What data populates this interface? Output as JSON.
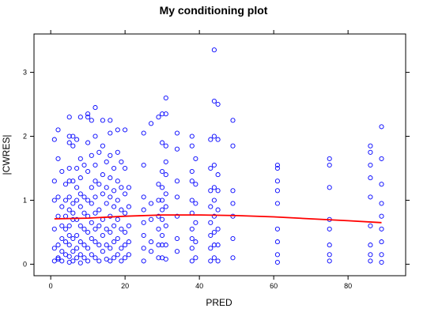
{
  "chart_data": {
    "type": "scatter",
    "title": "My conditioning plot",
    "xlabel": "PRED",
    "ylabel": "|CWRES|",
    "xlim": [
      -4.5,
      95.5
    ],
    "ylim": [
      -0.18,
      3.6
    ],
    "xticks": [
      0,
      20,
      40,
      60,
      80
    ],
    "yticks": [
      0,
      1,
      2,
      3
    ],
    "grid": false,
    "point_color": "#0000ff",
    "smooth_color": "#ff0000",
    "series": [
      {
        "values": [
          [
            1,
            1.95
          ],
          [
            1,
            1.3
          ],
          [
            1,
            1.0
          ],
          [
            1,
            0.55
          ],
          [
            1,
            0.25
          ],
          [
            1,
            0.05
          ],
          [
            2,
            2.1
          ],
          [
            2,
            1.65
          ],
          [
            2,
            1.05
          ],
          [
            2,
            0.75
          ],
          [
            2,
            0.3
          ],
          [
            2,
            0.1
          ],
          [
            2,
            0.08
          ],
          [
            3,
            1.45
          ],
          [
            3,
            0.9
          ],
          [
            3,
            0.6
          ],
          [
            3,
            0.4
          ],
          [
            3,
            0.2
          ],
          [
            3,
            0.05
          ],
          [
            4,
            1.25
          ],
          [
            4,
            1.0
          ],
          [
            4,
            0.75
          ],
          [
            4,
            0.55
          ],
          [
            4,
            0.35
          ],
          [
            4,
            0.15
          ],
          [
            5,
            2.3
          ],
          [
            5,
            2.0
          ],
          [
            5,
            1.9
          ],
          [
            5,
            1.5
          ],
          [
            5,
            1.3
          ],
          [
            5,
            1.05
          ],
          [
            5,
            0.85
          ],
          [
            5,
            0.6
          ],
          [
            5,
            0.45
          ],
          [
            5,
            0.3
          ],
          [
            5,
            0.12
          ],
          [
            5,
            0.03
          ],
          [
            6,
            2.0
          ],
          [
            6,
            1.85
          ],
          [
            6,
            1.3
          ],
          [
            6,
            0.95
          ],
          [
            6,
            0.8
          ],
          [
            6,
            0.7
          ],
          [
            6,
            0.4
          ],
          [
            6,
            0.2
          ],
          [
            6,
            0.05
          ],
          [
            7,
            1.95
          ],
          [
            7,
            1.5
          ],
          [
            7,
            1.2
          ],
          [
            7,
            1.0
          ],
          [
            7,
            0.7
          ],
          [
            7,
            0.45
          ],
          [
            7,
            0.25
          ],
          [
            7,
            0.1
          ],
          [
            8,
            2.3
          ],
          [
            8,
            1.65
          ],
          [
            8,
            1.35
          ],
          [
            8,
            1.1
          ],
          [
            8,
            0.9
          ],
          [
            8,
            0.6
          ],
          [
            8,
            0.35
          ],
          [
            8,
            0.15
          ],
          [
            8,
            0.02
          ],
          [
            9,
            1.55
          ],
          [
            9,
            1.05
          ],
          [
            9,
            0.8
          ],
          [
            9,
            0.55
          ],
          [
            9,
            0.3
          ],
          [
            9,
            0.1
          ],
          [
            10,
            2.35
          ],
          [
            10,
            2.3
          ],
          [
            10,
            1.9
          ],
          [
            10,
            1.45
          ],
          [
            10,
            1.0
          ],
          [
            10,
            0.75
          ],
          [
            10,
            0.5
          ],
          [
            10,
            0.25
          ],
          [
            10,
            0.05
          ],
          [
            11,
            2.25
          ],
          [
            11,
            1.7
          ],
          [
            11,
            1.2
          ],
          [
            11,
            0.95
          ],
          [
            11,
            0.65
          ],
          [
            11,
            0.4
          ],
          [
            11,
            0.15
          ],
          [
            12,
            2.45
          ],
          [
            12,
            2.0
          ],
          [
            12,
            1.55
          ],
          [
            12,
            1.3
          ],
          [
            12,
            1.05
          ],
          [
            12,
            0.8
          ],
          [
            12,
            0.55
          ],
          [
            12,
            0.35
          ],
          [
            12,
            0.1
          ],
          [
            13,
            1.75
          ],
          [
            13,
            1.25
          ],
          [
            13,
            0.85
          ],
          [
            13,
            0.6
          ],
          [
            13,
            0.3
          ],
          [
            13,
            0.05
          ],
          [
            14,
            2.25
          ],
          [
            14,
            1.85
          ],
          [
            14,
            1.4
          ],
          [
            14,
            1.1
          ],
          [
            14,
            0.7
          ],
          [
            14,
            0.45
          ],
          [
            14,
            0.2
          ],
          [
            15,
            1.6
          ],
          [
            15,
            1.2
          ],
          [
            15,
            0.95
          ],
          [
            15,
            0.55
          ],
          [
            15,
            0.3
          ],
          [
            15,
            0.08
          ],
          [
            16,
            2.25
          ],
          [
            16,
            2.05
          ],
          [
            16,
            1.7
          ],
          [
            16,
            1.35
          ],
          [
            16,
            1.05
          ],
          [
            16,
            0.75
          ],
          [
            16,
            0.5
          ],
          [
            16,
            0.25
          ],
          [
            16,
            0.05
          ],
          [
            17,
            1.5
          ],
          [
            17,
            1.15
          ],
          [
            17,
            0.9
          ],
          [
            17,
            0.6
          ],
          [
            17,
            0.35
          ],
          [
            17,
            0.1
          ],
          [
            18,
            2.1
          ],
          [
            18,
            1.75
          ],
          [
            18,
            1.3
          ],
          [
            18,
            1.0
          ],
          [
            18,
            0.7
          ],
          [
            18,
            0.4
          ],
          [
            18,
            0.15
          ],
          [
            19,
            1.6
          ],
          [
            19,
            1.2
          ],
          [
            19,
            0.85
          ],
          [
            19,
            0.55
          ],
          [
            19,
            0.25
          ],
          [
            19,
            0.05
          ],
          [
            20,
            2.1
          ],
          [
            20,
            1.5
          ],
          [
            20,
            1.1
          ],
          [
            20,
            0.8
          ],
          [
            20,
            0.5
          ],
          [
            20,
            0.3
          ],
          [
            20,
            0.1
          ],
          [
            21,
            1.2
          ],
          [
            21,
            0.9
          ],
          [
            21,
            0.6
          ],
          [
            21,
            0.35
          ],
          [
            21,
            0.15
          ],
          [
            25,
            2.05
          ],
          [
            25,
            1.55
          ],
          [
            25,
            1.05
          ],
          [
            25,
            0.85
          ],
          [
            25,
            0.65
          ],
          [
            25,
            0.45
          ],
          [
            25,
            0.25
          ],
          [
            25,
            0.05
          ],
          [
            27,
            2.2
          ],
          [
            27,
            0.95
          ],
          [
            27,
            0.7
          ],
          [
            27,
            0.35
          ],
          [
            27,
            0.2
          ],
          [
            29,
            2.3
          ],
          [
            29,
            1.25
          ],
          [
            29,
            1.0
          ],
          [
            29,
            0.75
          ],
          [
            29,
            0.55
          ],
          [
            29,
            0.3
          ],
          [
            29,
            0.1
          ],
          [
            30,
            2.35
          ],
          [
            30,
            1.9
          ],
          [
            30,
            1.45
          ],
          [
            30,
            1.2
          ],
          [
            30,
            1.0
          ],
          [
            30,
            0.85
          ],
          [
            30,
            0.7
          ],
          [
            30,
            0.45
          ],
          [
            30,
            0.3
          ],
          [
            30,
            0.1
          ],
          [
            31,
            2.6
          ],
          [
            31,
            2.35
          ],
          [
            31,
            1.85
          ],
          [
            31,
            1.6
          ],
          [
            31,
            1.4
          ],
          [
            31,
            1.1
          ],
          [
            31,
            0.9
          ],
          [
            31,
            0.6
          ],
          [
            31,
            0.3
          ],
          [
            31,
            0.08
          ],
          [
            34,
            2.05
          ],
          [
            34,
            1.8
          ],
          [
            34,
            1.3
          ],
          [
            34,
            1.05
          ],
          [
            34,
            0.75
          ],
          [
            34,
            0.4
          ],
          [
            34,
            0.2
          ],
          [
            38,
            2.0
          ],
          [
            38,
            1.85
          ],
          [
            38,
            1.45
          ],
          [
            38,
            1.3
          ],
          [
            38,
            1.0
          ],
          [
            38,
            0.8
          ],
          [
            38,
            0.55
          ],
          [
            38,
            0.4
          ],
          [
            38,
            0.25
          ],
          [
            38,
            0.05
          ],
          [
            39,
            1.65
          ],
          [
            39,
            1.25
          ],
          [
            39,
            0.95
          ],
          [
            39,
            0.65
          ],
          [
            39,
            0.35
          ],
          [
            39,
            0.1
          ],
          [
            43,
            1.95
          ],
          [
            43,
            1.5
          ],
          [
            43,
            1.15
          ],
          [
            43,
            0.9
          ],
          [
            43,
            0.65
          ],
          [
            43,
            0.45
          ],
          [
            43,
            0.25
          ],
          [
            43,
            0.05
          ],
          [
            44,
            3.35
          ],
          [
            44,
            2.55
          ],
          [
            44,
            2.0
          ],
          [
            44,
            1.55
          ],
          [
            44,
            1.2
          ],
          [
            44,
            1.0
          ],
          [
            44,
            0.75
          ],
          [
            44,
            0.5
          ],
          [
            44,
            0.3
          ],
          [
            44,
            0.1
          ],
          [
            45,
            2.5
          ],
          [
            45,
            1.95
          ],
          [
            45,
            1.4
          ],
          [
            45,
            1.15
          ],
          [
            45,
            0.85
          ],
          [
            45,
            0.55
          ],
          [
            45,
            0.3
          ],
          [
            45,
            0.05
          ],
          [
            49,
            2.25
          ],
          [
            49,
            1.85
          ],
          [
            49,
            1.15
          ],
          [
            49,
            0.95
          ],
          [
            49,
            0.75
          ],
          [
            49,
            0.4
          ],
          [
            49,
            0.1
          ],
          [
            61,
            1.55
          ],
          [
            61,
            1.5
          ],
          [
            61,
            1.3
          ],
          [
            61,
            1.15
          ],
          [
            61,
            0.95
          ],
          [
            61,
            0.55
          ],
          [
            61,
            0.35
          ],
          [
            61,
            0.15
          ],
          [
            61,
            0.03
          ],
          [
            75,
            1.65
          ],
          [
            75,
            1.55
          ],
          [
            75,
            1.2
          ],
          [
            75,
            0.7
          ],
          [
            75,
            0.55
          ],
          [
            75,
            0.3
          ],
          [
            75,
            0.15
          ],
          [
            75,
            0.05
          ],
          [
            86,
            1.85
          ],
          [
            86,
            1.75
          ],
          [
            86,
            1.55
          ],
          [
            86,
            1.35
          ],
          [
            86,
            1.05
          ],
          [
            86,
            0.6
          ],
          [
            86,
            0.3
          ],
          [
            86,
            0.15
          ],
          [
            86,
            0.05
          ],
          [
            89,
            2.15
          ],
          [
            89,
            1.65
          ],
          [
            89,
            1.25
          ],
          [
            89,
            0.95
          ],
          [
            89,
            0.75
          ],
          [
            89,
            0.55
          ],
          [
            89,
            0.35
          ],
          [
            89,
            0.15
          ],
          [
            89,
            0.03
          ]
        ]
      }
    ],
    "smooth": [
      [
        1,
        0.71
      ],
      [
        10,
        0.72
      ],
      [
        20,
        0.75
      ],
      [
        30,
        0.77
      ],
      [
        40,
        0.77
      ],
      [
        50,
        0.76
      ],
      [
        60,
        0.74
      ],
      [
        70,
        0.71
      ],
      [
        80,
        0.68
      ],
      [
        89,
        0.65
      ]
    ]
  }
}
